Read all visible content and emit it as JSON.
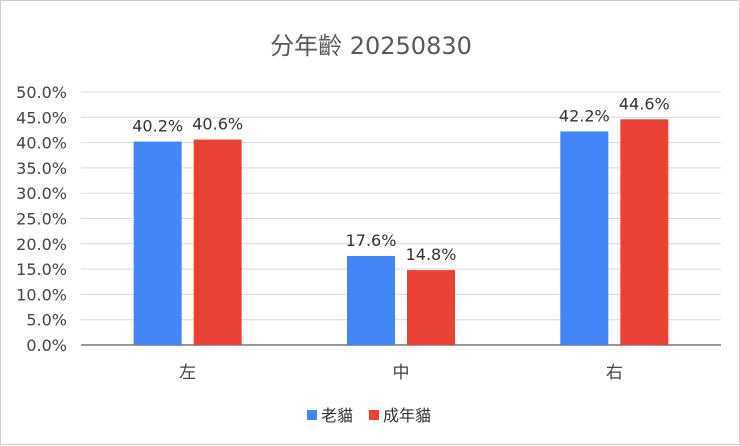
{
  "chart_data": {
    "type": "bar",
    "title": "分年齡 20250830",
    "xlabel": "",
    "ylabel": "",
    "categories": [
      "左",
      "中",
      "右"
    ],
    "series": [
      {
        "name": "老貓",
        "color": "#4285f4",
        "values": [
          40.2,
          17.6,
          42.2
        ],
        "labels": [
          "40.2%",
          "17.6%",
          "42.2%"
        ]
      },
      {
        "name": "成年貓",
        "color": "#ea4335",
        "values": [
          40.6,
          14.8,
          44.6
        ],
        "labels": [
          "40.6%",
          "14.8%",
          "44.6%"
        ]
      }
    ],
    "ylim": [
      0,
      50
    ],
    "yticks": [
      "0.0%",
      "5.0%",
      "10.0%",
      "15.0%",
      "20.0%",
      "25.0%",
      "30.0%",
      "35.0%",
      "40.0%",
      "45.0%",
      "50.0%"
    ],
    "grid": true,
    "legend_position": "bottom"
  }
}
